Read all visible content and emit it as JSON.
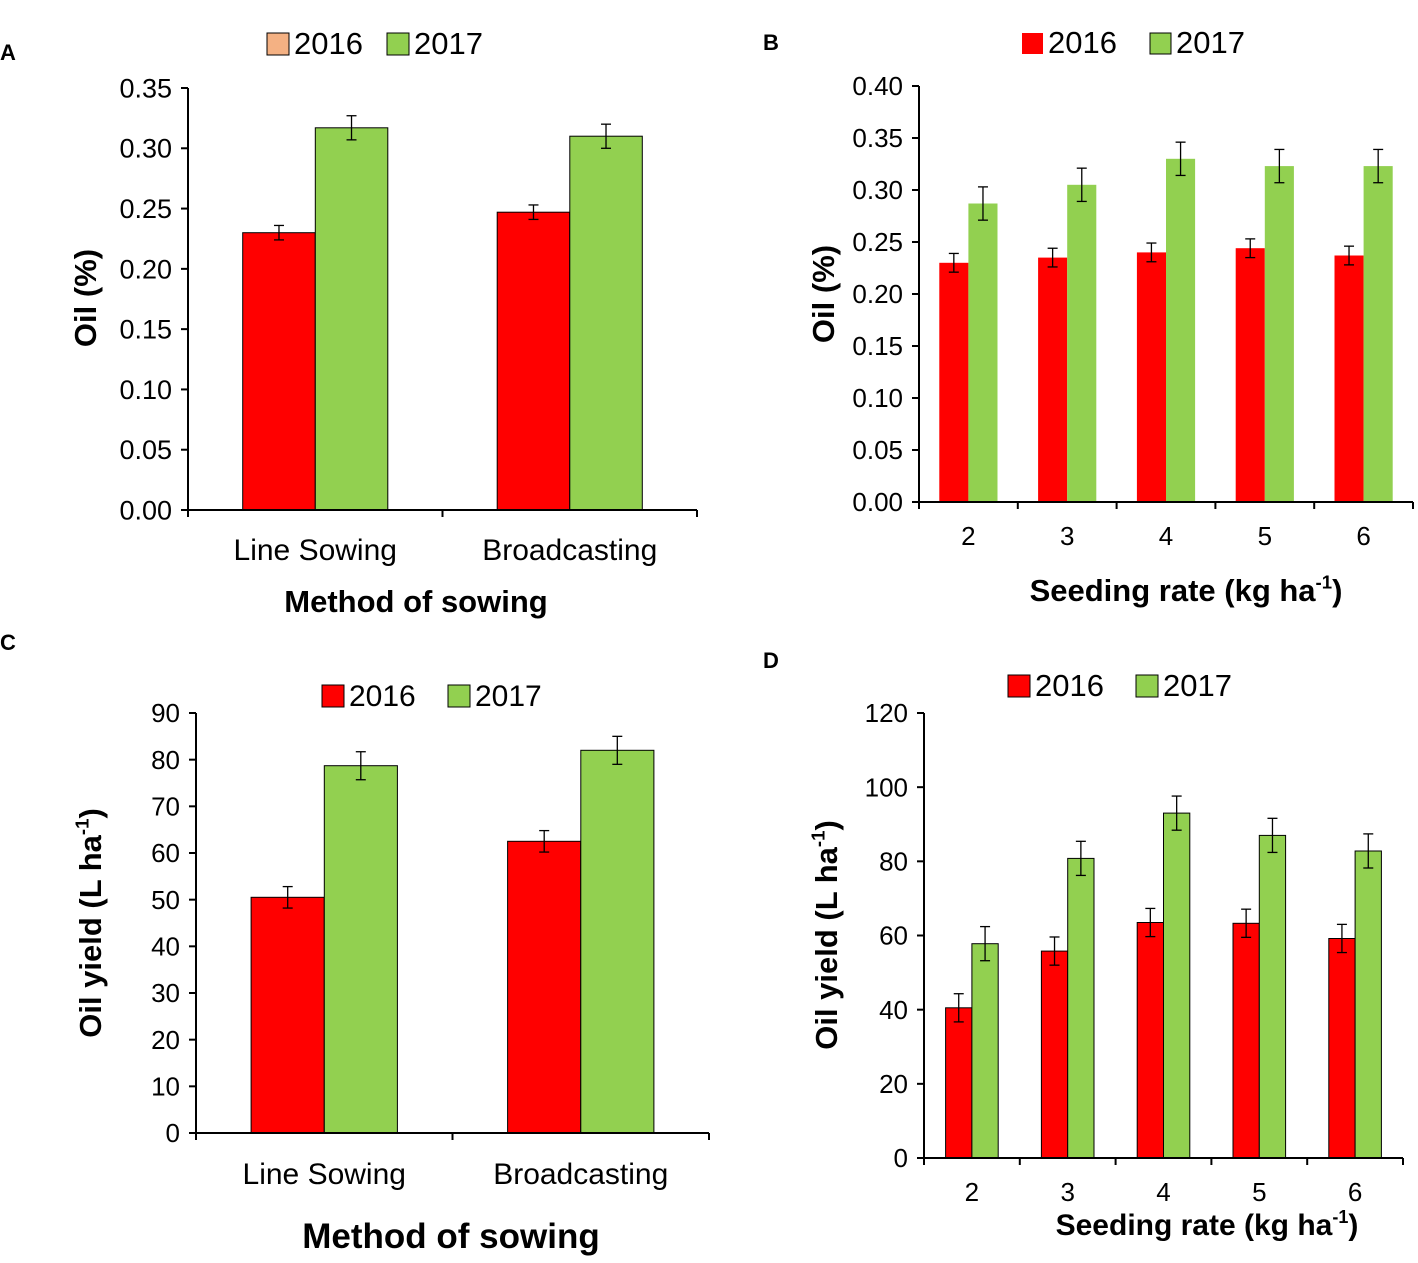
{
  "colors": {
    "c2016": "#ff0000",
    "c2016_swatch_A": "#f4b183",
    "c2017": "#92d050",
    "axis": "#000000"
  },
  "chart_data": [
    {
      "panel_label": "A",
      "type": "bar",
      "categories": [
        "Line Sowing",
        "Broadcasting"
      ],
      "series": [
        {
          "name": "2016",
          "values": [
            0.23,
            0.247
          ],
          "errors": [
            0.006,
            0.006
          ]
        },
        {
          "name": "2017",
          "values": [
            0.317,
            0.31
          ],
          "errors": [
            0.01,
            0.01
          ]
        }
      ],
      "title": "",
      "xlabel": "Method of sowing",
      "ylabel": "Oil  (%)",
      "ylim": [
        0,
        0.35
      ],
      "yticks": [
        "0.00",
        "0.05",
        "0.10",
        "0.15",
        "0.20",
        "0.25",
        "0.30",
        "0.35"
      ],
      "legend": [
        "2016",
        "2017"
      ]
    },
    {
      "panel_label": "B",
      "type": "bar",
      "categories": [
        "2",
        "3",
        "4",
        "5",
        "6"
      ],
      "series": [
        {
          "name": "2016",
          "values": [
            0.23,
            0.235,
            0.24,
            0.244,
            0.237
          ],
          "errors": [
            0.009,
            0.009,
            0.009,
            0.009,
            0.009
          ]
        },
        {
          "name": "2017",
          "values": [
            0.287,
            0.305,
            0.33,
            0.323,
            0.323
          ],
          "errors": [
            0.016,
            0.016,
            0.016,
            0.016,
            0.016
          ]
        }
      ],
      "title": "",
      "xlabel": "Seeding rate (kg ha",
      "xlabel_sup": "-1",
      "xlabel_end": ")",
      "ylabel": "Oil  (%)",
      "ylim": [
        0,
        0.4
      ],
      "yticks": [
        "0.00",
        "0.05",
        "0.10",
        "0.15",
        "0.20",
        "0.25",
        "0.30",
        "0.35",
        "0.40"
      ],
      "legend": [
        "2016",
        "2017"
      ]
    },
    {
      "panel_label": "C",
      "type": "bar",
      "categories": [
        "Line Sowing",
        "Broadcasting"
      ],
      "series": [
        {
          "name": "2016",
          "values": [
            50.5,
            62.5
          ],
          "errors": [
            2.3,
            2.3
          ]
        },
        {
          "name": "2017",
          "values": [
            78.7,
            82.0
          ],
          "errors": [
            3.0,
            3.0
          ]
        }
      ],
      "title": "",
      "xlabel": "Method of sowing",
      "ylabel": "Oil yield (L ha",
      "ylabel_sup": "-1",
      "ylabel_end": ")",
      "ylim": [
        0,
        90
      ],
      "yticks": [
        "0",
        "10",
        "20",
        "30",
        "40",
        "50",
        "60",
        "70",
        "80",
        "90"
      ],
      "legend": [
        "2016",
        "2017"
      ]
    },
    {
      "panel_label": "D",
      "type": "bar",
      "categories": [
        "2",
        "3",
        "4",
        "5",
        "6"
      ],
      "series": [
        {
          "name": "2016",
          "values": [
            40.5,
            55.8,
            63.5,
            63.3,
            59.2
          ],
          "errors": [
            3.8,
            3.8,
            3.8,
            3.8,
            3.8
          ]
        },
        {
          "name": "2017",
          "values": [
            57.8,
            80.8,
            93.0,
            87.0,
            82.8
          ],
          "errors": [
            4.6,
            4.6,
            4.6,
            4.6,
            4.6
          ]
        }
      ],
      "title": "",
      "xlabel": "Seeding rate (kg ha",
      "xlabel_sup": "-1",
      "xlabel_end": ")",
      "ylabel": "Oil yield (L ha",
      "ylabel_sup": "-1",
      "ylabel_end": ")",
      "ylim": [
        0,
        120
      ],
      "yticks": [
        "0",
        "20",
        "40",
        "60",
        "80",
        "100",
        "120"
      ],
      "legend": [
        "2016",
        "2017"
      ]
    }
  ]
}
